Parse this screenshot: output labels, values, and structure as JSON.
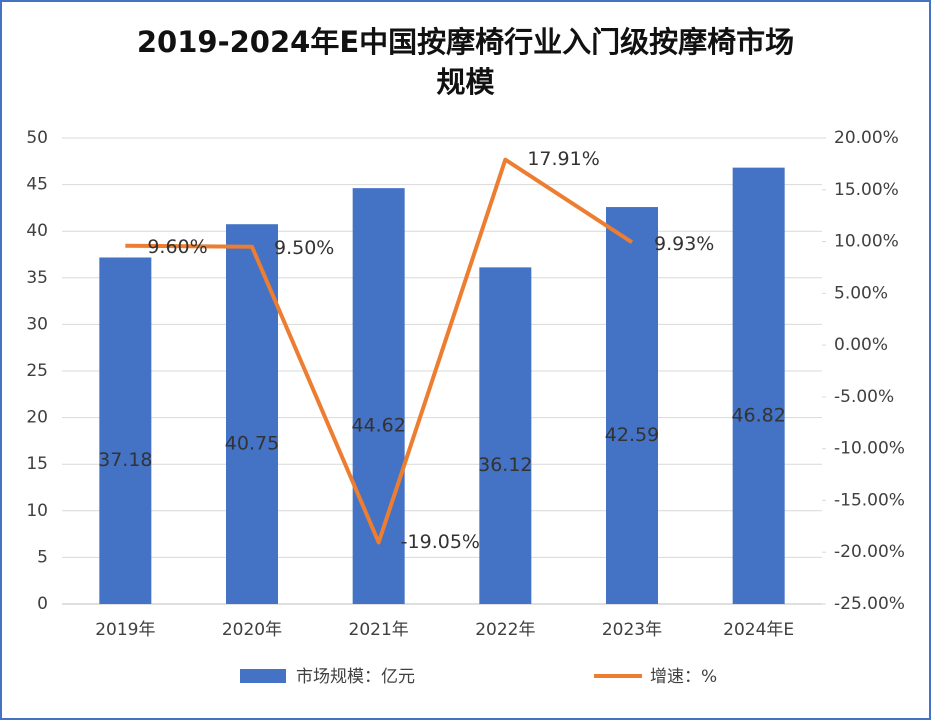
{
  "chart_data": {
    "type": "bar_line",
    "title": "2019-2024年E中国按摩椅行业入门级按摩椅市场规模",
    "categories": [
      "2019年",
      "2020年",
      "2021年",
      "2022年",
      "2023年",
      "2024年E"
    ],
    "series": [
      {
        "name": "市场规模：亿元",
        "type": "bar",
        "color": "#4472c4",
        "values": [
          37.18,
          40.75,
          44.62,
          36.12,
          42.59,
          46.82
        ]
      },
      {
        "name": "增速：%",
        "type": "line",
        "axis": "y2",
        "color": "#ed7d31",
        "values": [
          9.6,
          9.5,
          -19.05,
          17.91,
          9.93,
          null
        ],
        "value_labels": [
          "9.60%",
          "9.50%",
          "-19.05%",
          "17.91%",
          "9.93%",
          null
        ]
      }
    ],
    "ylim": [
      0,
      50
    ],
    "yticks": [
      0,
      5,
      10,
      15,
      20,
      25,
      30,
      35,
      40,
      45,
      50
    ],
    "y2lim": [
      -25,
      20
    ],
    "y2ticks": [
      {
        "value": -25,
        "label": "-25.00%"
      },
      {
        "value": -20,
        "label": "-20.00%"
      },
      {
        "value": -15,
        "label": "-15.00%"
      },
      {
        "value": -10,
        "label": "-10.00%"
      },
      {
        "value": -5,
        "label": "-5.00%"
      },
      {
        "value": 0,
        "label": "0.00%"
      },
      {
        "value": 5,
        "label": "5.00%"
      },
      {
        "value": 10,
        "label": "10.00%"
      },
      {
        "value": 15,
        "label": "15.00%"
      },
      {
        "value": 20,
        "label": "20.00%"
      }
    ],
    "grid": true
  }
}
